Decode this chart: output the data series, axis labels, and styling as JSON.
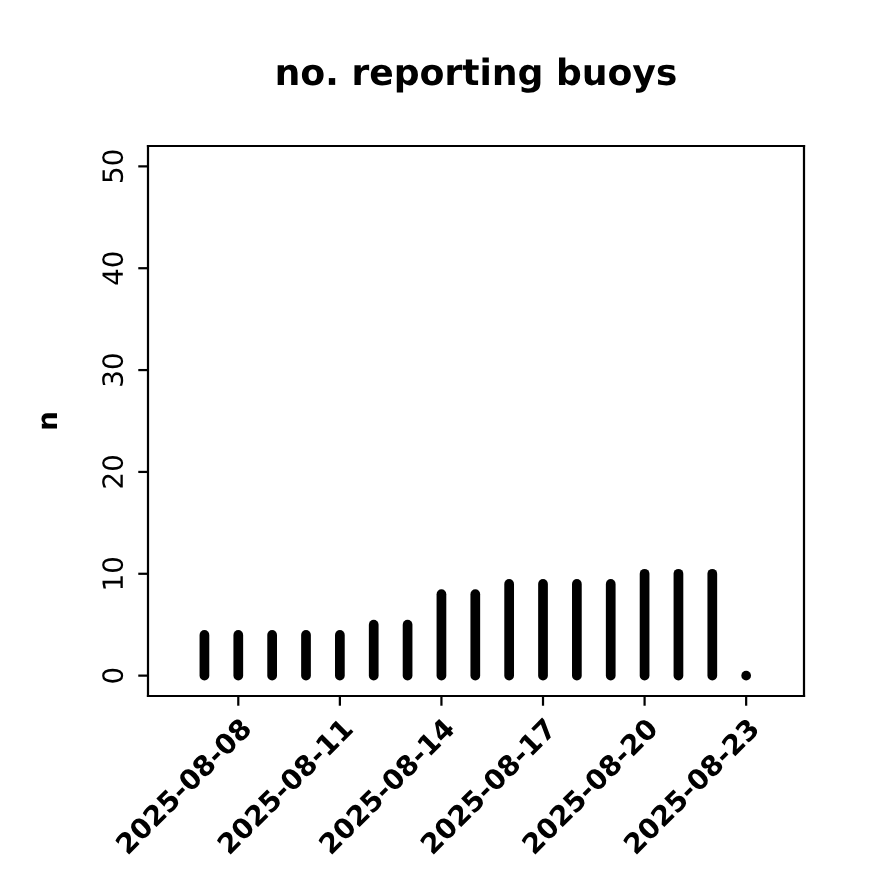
{
  "chart_data": {
    "type": "bar",
    "title": "no. reporting buoys",
    "ylabel": "n",
    "x": [
      "2025-08-07",
      "2025-08-08",
      "2025-08-09",
      "2025-08-10",
      "2025-08-11",
      "2025-08-12",
      "2025-08-13",
      "2025-08-14",
      "2025-08-15",
      "2025-08-16",
      "2025-08-17",
      "2025-08-18",
      "2025-08-19",
      "2025-08-20",
      "2025-08-21",
      "2025-08-22",
      "2025-08-23"
    ],
    "values": [
      4,
      4,
      4,
      4,
      4,
      5,
      5,
      8,
      8,
      9,
      9,
      9,
      9,
      10,
      10,
      10,
      0
    ],
    "color": "#000000",
    "xlim": [
      "2025-08-05T08:00",
      "2025-08-24T17:00"
    ],
    "xticks": [
      {
        "value": "2025-08-08",
        "label": "2025-08-08"
      },
      {
        "value": "2025-08-11",
        "label": "2025-08-11"
      },
      {
        "value": "2025-08-14",
        "label": "2025-08-14"
      },
      {
        "value": "2025-08-17",
        "label": "2025-08-17"
      },
      {
        "value": "2025-08-20",
        "label": "2025-08-20"
      },
      {
        "value": "2025-08-23",
        "label": "2025-08-23"
      }
    ],
    "ylim": [
      -2,
      52
    ],
    "yticks": [
      0,
      10,
      20,
      30,
      40,
      50
    ],
    "grid": false
  }
}
